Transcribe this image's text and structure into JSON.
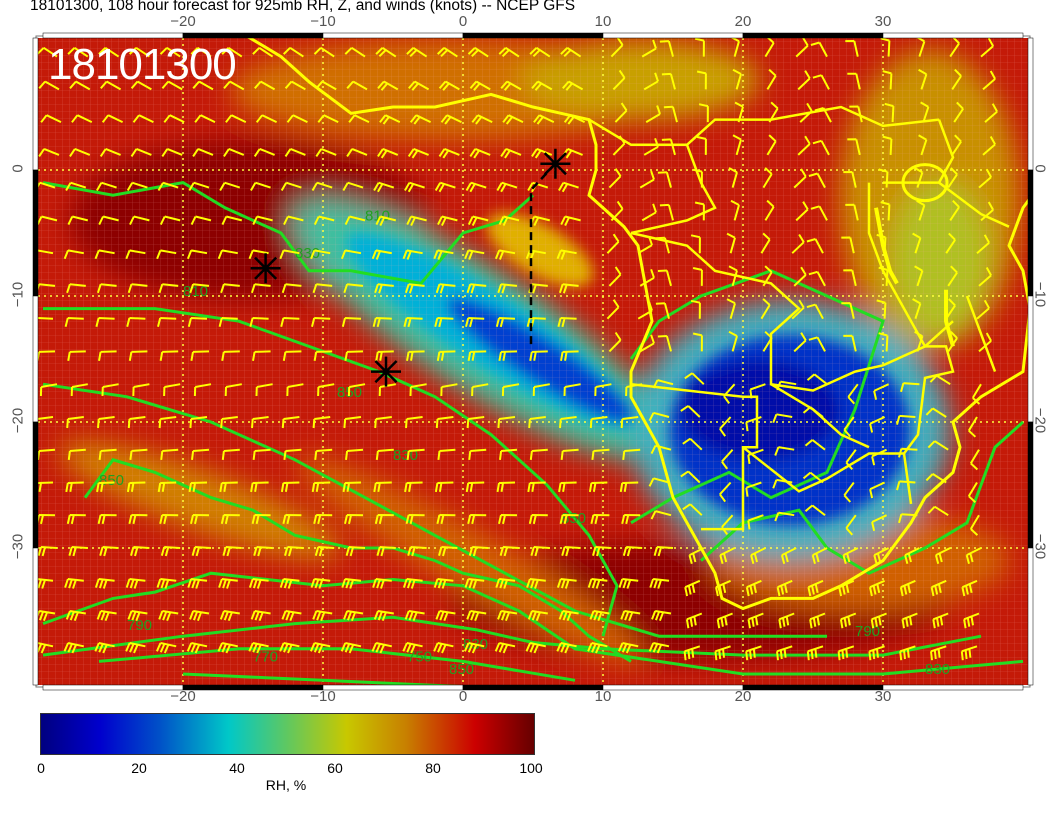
{
  "title": "18101300, 108 hour forecast for 925mb RH, Z, and winds (knots) -- NCEP GFS",
  "stamp": "18101300",
  "axes": {
    "lon_ticks": [
      "−20",
      "−10",
      "0",
      "10",
      "20",
      "30"
    ],
    "lat_ticks": [
      "0",
      "−10",
      "−20",
      "−30"
    ]
  },
  "map": {
    "lon_range": [
      -30,
      40
    ],
    "lat_range": [
      -41,
      10.5
    ],
    "field": "RH, %",
    "contour_color": "#22dd22",
    "coast_color": "#ffff00",
    "barb_color": "#ffff00",
    "contour_labels": [
      "850",
      "830",
      "810",
      "790",
      "770",
      "750",
      "850",
      "830",
      "810",
      "850",
      "850",
      "830",
      "790",
      "830"
    ],
    "markers": [
      {
        "symbol": "asterisk",
        "lon": -14.1,
        "lat": -7.8
      },
      {
        "symbol": "asterisk",
        "lon": -5.5,
        "lat": -16.0
      },
      {
        "symbol": "asterisk",
        "lon": 6.6,
        "lat": 0.5
      }
    ]
  },
  "colorbar": {
    "label": "RH, %",
    "ticks": [
      "0",
      "20",
      "40",
      "60",
      "80",
      "100"
    ],
    "range": [
      0,
      100
    ],
    "colors": [
      "#000080",
      "#0000cd",
      "#00c8c8",
      "#c8c800",
      "#cc0000",
      "#660000"
    ]
  }
}
